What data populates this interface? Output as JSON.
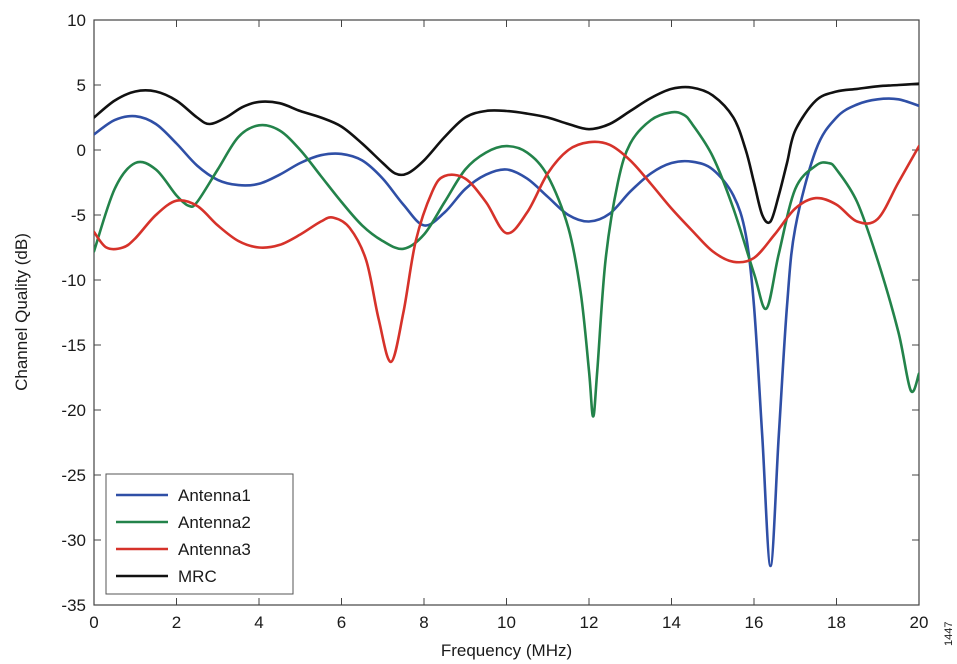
{
  "chart_data": {
    "type": "line",
    "title": "",
    "xlabel": "Frequency (MHz)",
    "ylabel": "Channel Quality (dB)",
    "xlim": [
      0,
      20
    ],
    "ylim": [
      -35,
      10
    ],
    "xticks": [
      "0",
      "2",
      "4",
      "6",
      "8",
      "10",
      "12",
      "14",
      "16",
      "18",
      "20"
    ],
    "yticks": [
      "10",
      "5",
      "0",
      "-5",
      "-10",
      "-15",
      "-20",
      "-25",
      "-30",
      "-35"
    ],
    "grid": false,
    "legend_position": "bottom-left",
    "series": [
      {
        "name": "Antenna1",
        "color": "#2f4fa6",
        "x": [
          0,
          0.5,
          1,
          1.5,
          2,
          2.5,
          3,
          3.5,
          4,
          4.5,
          5,
          5.5,
          6,
          6.5,
          7,
          7.5,
          8,
          8.5,
          9,
          9.5,
          10,
          10.5,
          11,
          11.5,
          12,
          12.5,
          13,
          13.5,
          14,
          14.5,
          15,
          15.5,
          15.8,
          16,
          16.2,
          16.4,
          16.6,
          16.8,
          17,
          17.5,
          18,
          18.5,
          19,
          19.5,
          20
        ],
        "y": [
          1.2,
          2.3,
          2.6,
          2.0,
          0.5,
          -1.2,
          -2.3,
          -2.7,
          -2.6,
          -1.9,
          -1.0,
          -0.4,
          -0.3,
          -0.8,
          -2.2,
          -4.2,
          -5.8,
          -4.8,
          -3.0,
          -1.9,
          -1.5,
          -2.2,
          -3.6,
          -5.0,
          -5.5,
          -4.9,
          -3.2,
          -1.8,
          -1.0,
          -0.9,
          -1.5,
          -3.5,
          -6.5,
          -12.0,
          -22.0,
          -32.0,
          -22.0,
          -12.0,
          -6.0,
          0.0,
          2.5,
          3.5,
          3.9,
          3.9,
          3.4
        ]
      },
      {
        "name": "Antenna2",
        "color": "#23834a",
        "x": [
          0,
          0.5,
          1,
          1.5,
          2,
          2.3,
          2.5,
          3,
          3.5,
          4,
          4.5,
          5,
          5.5,
          6,
          6.5,
          7,
          7.5,
          8,
          8.5,
          9,
          9.5,
          10,
          10.5,
          11,
          11.5,
          11.8,
          12,
          12.1,
          12.2,
          12.4,
          12.7,
          13,
          13.5,
          14,
          14.3,
          14.5,
          15,
          15.5,
          16,
          16.3,
          16.6,
          17,
          17.5,
          17.8,
          18,
          18.5,
          19,
          19.5,
          19.8,
          20
        ],
        "y": [
          -7.8,
          -3.0,
          -1.0,
          -1.5,
          -3.5,
          -4.3,
          -4.0,
          -1.5,
          1.0,
          1.9,
          1.5,
          0.0,
          -2.0,
          -4.0,
          -5.8,
          -7.0,
          -7.6,
          -6.5,
          -4.0,
          -1.5,
          -0.2,
          0.3,
          -0.2,
          -2.0,
          -6.0,
          -11.0,
          -17.0,
          -20.5,
          -17.0,
          -8.5,
          -2.5,
          0.5,
          2.3,
          2.9,
          2.7,
          2.0,
          -0.5,
          -4.5,
          -9.5,
          -12.2,
          -8.0,
          -3.0,
          -1.2,
          -1.0,
          -1.5,
          -4.0,
          -8.5,
          -14.0,
          -18.5,
          -17.2
        ]
      },
      {
        "name": "Antenna3",
        "color": "#d6322a",
        "x": [
          0,
          0.3,
          0.7,
          1,
          1.5,
          2,
          2.5,
          3,
          3.5,
          4,
          4.5,
          5,
          5.5,
          5.8,
          6.2,
          6.6,
          6.9,
          7.2,
          7.5,
          7.8,
          8.2,
          8.5,
          9,
          9.5,
          10,
          10.5,
          11,
          11.5,
          12,
          12.5,
          13,
          13.5,
          14,
          14.5,
          15,
          15.5,
          16,
          16.5,
          17,
          17.5,
          18,
          18.5,
          19,
          19.5,
          20
        ],
        "y": [
          -6.3,
          -7.5,
          -7.5,
          -6.8,
          -5.0,
          -3.9,
          -4.3,
          -5.8,
          -7.0,
          -7.5,
          -7.3,
          -6.5,
          -5.5,
          -5.2,
          -6.0,
          -8.5,
          -13.0,
          -16.3,
          -12.5,
          -7.0,
          -3.2,
          -2.0,
          -2.2,
          -4.0,
          -6.4,
          -4.8,
          -1.8,
          0.0,
          0.6,
          0.4,
          -0.8,
          -2.6,
          -4.5,
          -6.2,
          -7.8,
          -8.6,
          -8.3,
          -6.5,
          -4.5,
          -3.7,
          -4.2,
          -5.5,
          -5.3,
          -2.5,
          0.3
        ]
      },
      {
        "name": "MRC",
        "color": "#111111",
        "x": [
          0,
          0.5,
          1,
          1.5,
          2,
          2.5,
          2.8,
          3.2,
          3.6,
          4,
          4.5,
          5,
          5.5,
          6,
          6.5,
          7,
          7.3,
          7.6,
          8,
          8.5,
          9,
          9.5,
          10,
          10.5,
          11,
          11.5,
          12,
          12.5,
          13,
          13.5,
          14,
          14.5,
          15,
          15.5,
          15.8,
          16,
          16.2,
          16.4,
          16.6,
          16.8,
          17,
          17.5,
          18,
          18.5,
          19,
          19.5,
          20
        ],
        "y": [
          2.5,
          3.8,
          4.5,
          4.5,
          3.8,
          2.5,
          2.0,
          2.5,
          3.3,
          3.7,
          3.6,
          3.0,
          2.5,
          1.8,
          0.5,
          -1.0,
          -1.8,
          -1.8,
          -0.8,
          1.0,
          2.5,
          3.0,
          3.0,
          2.8,
          2.5,
          2.0,
          1.6,
          2.0,
          3.0,
          4.0,
          4.7,
          4.8,
          4.2,
          2.5,
          0.0,
          -2.5,
          -5.0,
          -5.5,
          -3.5,
          -1.0,
          1.5,
          3.8,
          4.5,
          4.7,
          4.9,
          5.0,
          5.1
        ]
      }
    ]
  },
  "figure_id": "1447"
}
